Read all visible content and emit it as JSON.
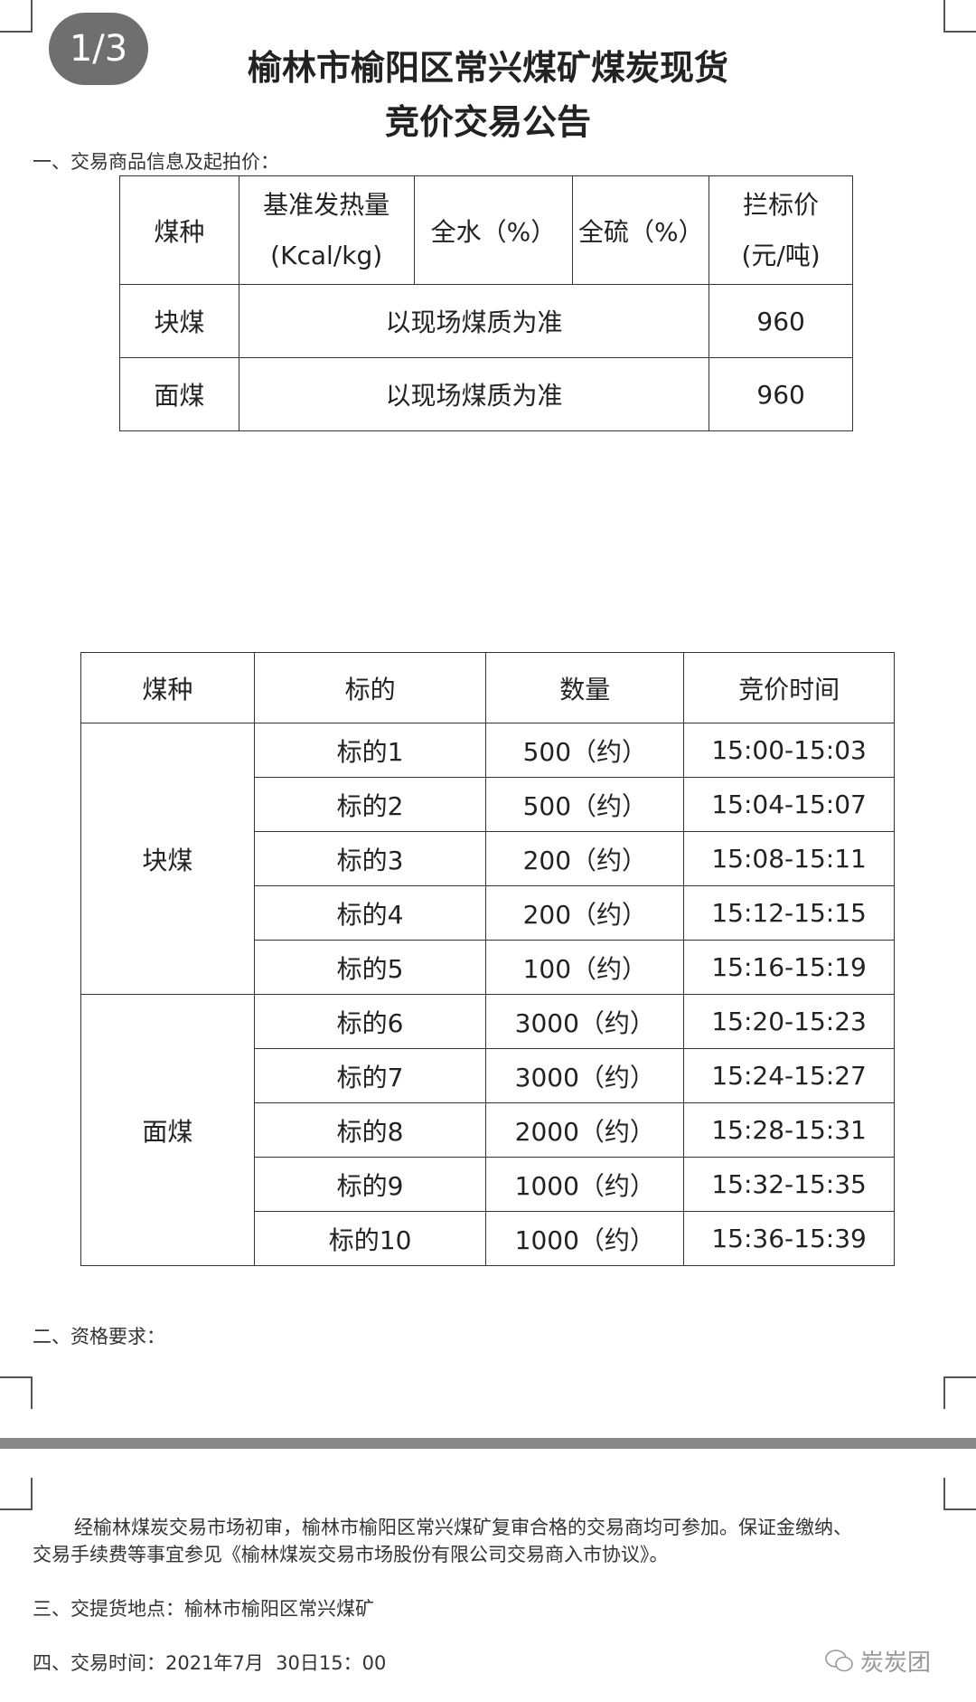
{
  "page_indicator": "1/3",
  "title": {
    "line1": "榆林市榆阳区常兴煤矿煤炭现货",
    "line2": "竞价交易公告"
  },
  "section1": "一、交易商品信息及起拍价：",
  "table1": {
    "headers": [
      "煤种",
      "基准发热量\n(Kcal/kg)",
      "全水（%）",
      "全硫（%）",
      "拦标价\n(元/吨)"
    ],
    "header_lines": {
      "h2a": "基准发热量",
      "h2b": "(Kcal/kg)",
      "h5a": "拦标价",
      "h5b": "(元/吨)"
    },
    "rows": [
      {
        "type": "块煤",
        "quality": "以现场煤质为准",
        "price": "960"
      },
      {
        "type": "面煤",
        "quality": "以现场煤质为准",
        "price": "960"
      }
    ]
  },
  "table2": {
    "headers": [
      "煤种",
      "标的",
      "数量",
      "竞价时间"
    ],
    "groups": [
      {
        "type": "块煤",
        "rows": [
          {
            "lot": "标的1",
            "qty": "500（约）",
            "time": "15:00-15:03"
          },
          {
            "lot": "标的2",
            "qty": "500（约）",
            "time": "15:04-15:07"
          },
          {
            "lot": "标的3",
            "qty": "200（约）",
            "time": "15:08-15:11"
          },
          {
            "lot": "标的4",
            "qty": "200（约）",
            "time": "15:12-15:15"
          },
          {
            "lot": "标的5",
            "qty": "100（约）",
            "time": "15:16-15:19"
          }
        ]
      },
      {
        "type": "面煤",
        "rows": [
          {
            "lot": "标的6",
            "qty": "3000（约）",
            "time": "15:20-15:23"
          },
          {
            "lot": "标的7",
            "qty": "3000（约）",
            "time": "15:24-15:27"
          },
          {
            "lot": "标的8",
            "qty": "2000（约）",
            "time": "15:28-15:31"
          },
          {
            "lot": "标的9",
            "qty": "1000（约）",
            "time": "15:32-15:35"
          },
          {
            "lot": "标的10",
            "qty": "1000（约）",
            "time": "15:36-15:39"
          }
        ]
      }
    ]
  },
  "section2": "二、资格要求：",
  "paragraph": {
    "line1": "经榆林煤炭交易市场初审，榆林市榆阳区常兴煤矿复审合格的交易商均可参加。保证金缴纳、",
    "line2": "交易手续费等事宜参见《榆林煤炭交易市场股份有限公司交易商入市协议》。"
  },
  "section3": "三、交提货地点：榆林市榆阳区常兴煤矿",
  "section4": "四、交易时间：2021年7月  30日15：00",
  "watermark": {
    "icon": "wechat-icon",
    "text": "炭炭团"
  }
}
